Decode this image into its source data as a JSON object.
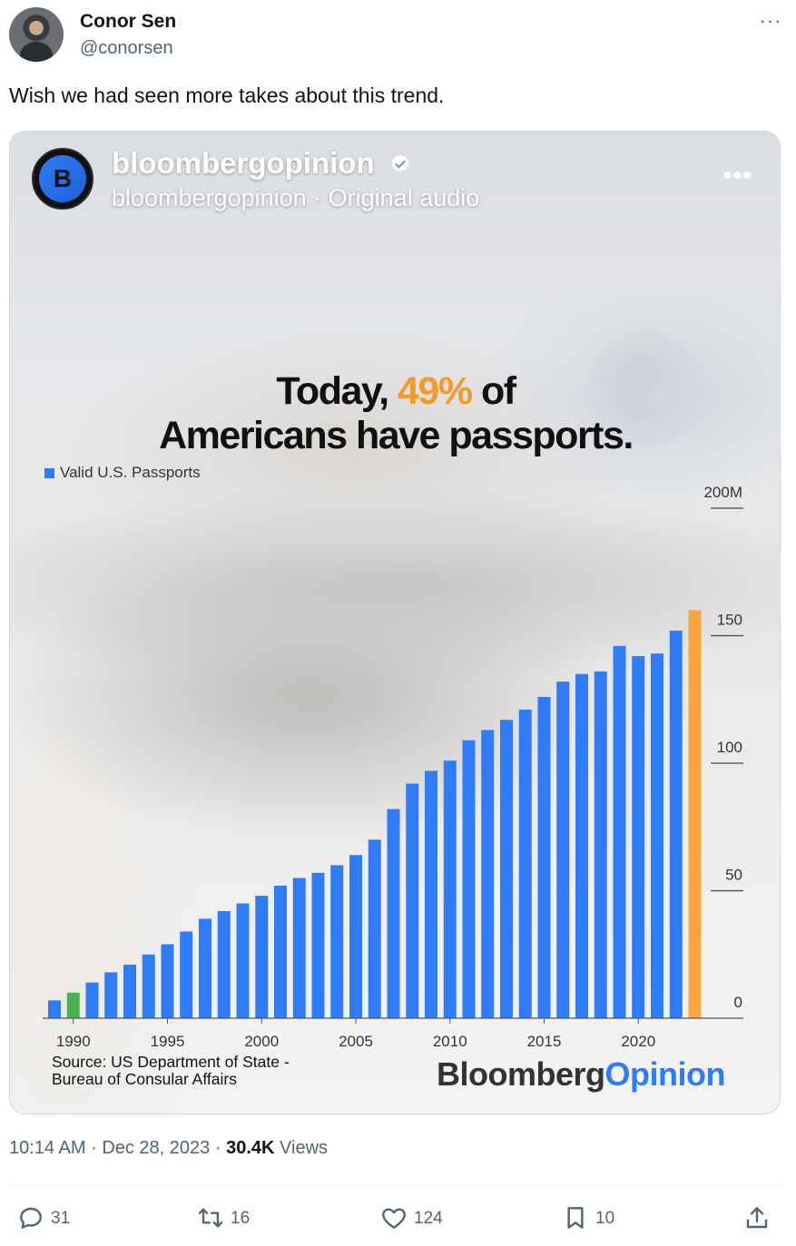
{
  "tweet": {
    "author_name": "Conor Sen",
    "author_handle": "@conorsen",
    "more_label": "···",
    "text": "Wish we had seen more takes about this trend.",
    "time": "10:14 AM",
    "date": "Dec 28, 2023",
    "views_count": "30.4K",
    "views_label": "Views",
    "meta_separator": "·"
  },
  "embed": {
    "account_name": "bloombergopinion",
    "subtitle": "bloombergopinion · Original audio",
    "avatar_letter": "B",
    "more_label": "•••",
    "headline_line1_prefix": "Today, ",
    "headline_pct": "49%",
    "headline_line1_suffix": " of",
    "headline_line2": "Americans have passports.",
    "source_line1": "Source: US Department of State -",
    "source_line2": "Bureau of Consular Affairs",
    "logo_part1": "Bloomberg",
    "logo_part2": "Opinion"
  },
  "chart_data": {
    "type": "bar",
    "legend": [
      "Valid U.S. Passports"
    ],
    "x": [
      1989,
      1990,
      1991,
      1992,
      1993,
      1994,
      1995,
      1996,
      1997,
      1998,
      1999,
      2000,
      2001,
      2002,
      2003,
      2004,
      2005,
      2006,
      2007,
      2008,
      2009,
      2010,
      2011,
      2012,
      2013,
      2014,
      2015,
      2016,
      2017,
      2018,
      2019,
      2020,
      2021,
      2022,
      2023
    ],
    "values": [
      7,
      10,
      14,
      18,
      21,
      25,
      29,
      34,
      39,
      42,
      45,
      48,
      52,
      55,
      57,
      60,
      64,
      70,
      82,
      92,
      97,
      101,
      109,
      113,
      117,
      121,
      126,
      132,
      135,
      136,
      146,
      142,
      143,
      152,
      160
    ],
    "highlight": {
      "1990": "#4caf50",
      "2023": "#f7a541"
    },
    "bar_color": "#2f7cf6",
    "y_ticks": [
      "0",
      "50",
      "100",
      "150",
      "200M"
    ],
    "y_tick_values": [
      0,
      50,
      100,
      150,
      200
    ],
    "x_tick_labels": [
      "1990",
      "1995",
      "2000",
      "2005",
      "2010",
      "2015",
      "2020"
    ],
    "x_tick_values": [
      1990,
      1995,
      2000,
      2005,
      2010,
      2015,
      2020
    ],
    "ylim": [
      0,
      200
    ],
    "y_axis_side": "right"
  },
  "actions": {
    "replies": "31",
    "reposts": "16",
    "likes": "124",
    "bookmarks": "10"
  }
}
